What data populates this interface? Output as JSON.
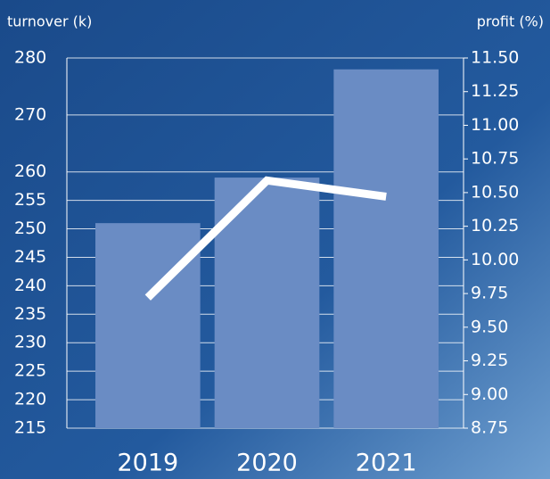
{
  "chart_data": {
    "type": "bar",
    "ylabel": "turnover (k)",
    "y2label": "profit (%)",
    "categories": [
      "2019",
      "2020",
      "2021"
    ],
    "series": [
      {
        "name": "turnover",
        "type": "bar",
        "color": "#6a8cc4",
        "values": [
          251,
          259,
          278
        ]
      },
      {
        "name": "profit",
        "type": "line",
        "axis": "y2",
        "color": "#ffffff",
        "values": [
          9.72,
          10.59,
          10.47
        ]
      }
    ],
    "ylim": [
      215,
      280
    ],
    "yticks": [
      280,
      270,
      260,
      255,
      250,
      245,
      240,
      235,
      230,
      225,
      220,
      215
    ],
    "y2lim": [
      8.75,
      11.5
    ],
    "y2ticks": [
      {
        "value": 11.5,
        "label": "11.50"
      },
      11.25,
      {
        "value": 11.0,
        "label": "11.00"
      },
      10.75,
      {
        "value": 10.5,
        "label": "10.50"
      },
      10.25,
      {
        "value": 10.0,
        "label": "10.00"
      },
      9.75,
      {
        "value": 9.5,
        "label": "9.50"
      },
      9.25,
      {
        "value": 9.0,
        "label": "9.00"
      },
      8.75
    ],
    "grid": true
  }
}
